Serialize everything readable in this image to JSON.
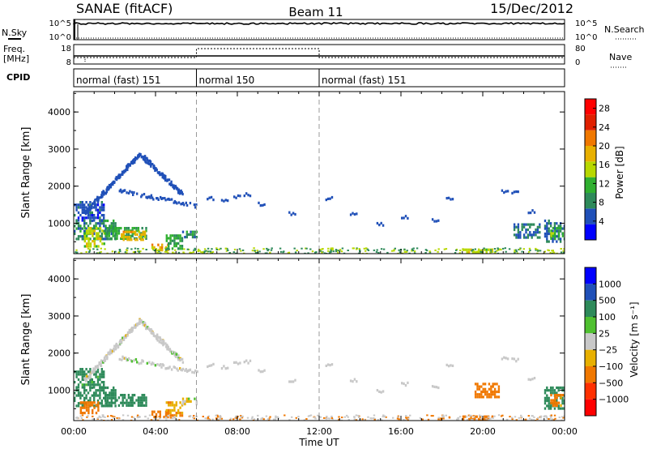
{
  "header": {
    "station": "SANAE (fitACF)",
    "beam": "Beam 11",
    "date": "15/Dec/2012"
  },
  "nsky_panel": {
    "left_label": "N.Sky",
    "left_ticks": [
      "10^5",
      "10^0"
    ],
    "right_label": "N.Search",
    "right_ticks": [
      "10^5",
      "10^0"
    ]
  },
  "freq_panel": {
    "left_label_1": "Freq.",
    "left_label_2": "[MHz]",
    "left_ticks": [
      "18",
      "8"
    ],
    "right_label": "Nave",
    "right_ticks": [
      "80",
      "0"
    ]
  },
  "cpid_panel": {
    "label": "CPID",
    "segments": [
      {
        "label": "normal (fast) 151",
        "start_h": 0,
        "end_h": 6
      },
      {
        "label": "normal 150",
        "start_h": 6,
        "end_h": 12
      },
      {
        "label": "normal (fast) 151",
        "start_h": 12,
        "end_h": 24
      }
    ]
  },
  "colors": {
    "power_scale": [
      "#0000ff",
      "#2050b8",
      "#2e8a5a",
      "#30b030",
      "#b8d800",
      "#e8b000",
      "#f07800",
      "#e02000",
      "#ff0000"
    ],
    "velocity_scale": [
      "#0000ff",
      "#2050b8",
      "#2e8a5a",
      "#4fc030",
      "#c8c8c8",
      "#e8b000",
      "#f07800",
      "#ff3000",
      "#ff0000"
    ]
  },
  "chart_data": [
    {
      "type": "heatmap",
      "name": "power",
      "ylabel": "Slant Range [km]",
      "ylim": [
        180,
        4550
      ],
      "yticks": [
        1000,
        2000,
        3000,
        4000
      ],
      "xlim": [
        0,
        24
      ],
      "colorbar": {
        "label": "Power [dB]",
        "ticks": [
          4,
          8,
          12,
          16,
          20,
          24,
          28
        ],
        "range": [
          0,
          30
        ]
      },
      "regions": [
        {
          "t0": 0.0,
          "t1": 1.5,
          "r0": 1100,
          "r1": 1600,
          "level": 6
        },
        {
          "t0": 0.0,
          "t1": 2.0,
          "r0": 600,
          "r1": 1100,
          "level": 10
        },
        {
          "t0": 0.5,
          "t1": 1.5,
          "r0": 400,
          "r1": 900,
          "level": 18
        },
        {
          "t0": 1.5,
          "t1": 3.5,
          "r0": 600,
          "r1": 900,
          "level": 12
        },
        {
          "t0": 2.3,
          "t1": 3.5,
          "r0": 550,
          "r1": 800,
          "level": 22
        },
        {
          "t0": 3.8,
          "t1": 4.6,
          "r0": 250,
          "r1": 450,
          "level": 22
        },
        {
          "t0": 4.5,
          "t1": 5.3,
          "r0": 350,
          "r1": 700,
          "level": 12
        },
        {
          "t0": 5.3,
          "t1": 6.0,
          "r0": 600,
          "r1": 800,
          "level": 10
        },
        {
          "t0": 19.0,
          "t1": 20.5,
          "r0": 200,
          "r1": 320,
          "level": 18
        },
        {
          "t0": 21.5,
          "t1": 22.8,
          "r0": 600,
          "r1": 1000,
          "level": 8
        },
        {
          "t0": 23.0,
          "t1": 24.0,
          "r0": 500,
          "r1": 1100,
          "level": 8
        },
        {
          "t0": 23.3,
          "t1": 23.9,
          "r0": 600,
          "r1": 900,
          "level": 14
        }
      ]
    },
    {
      "type": "heatmap",
      "name": "velocity",
      "ylabel": "Slant Range [km]",
      "xlabel": "Time UT",
      "ylim": [
        180,
        4550
      ],
      "yticks": [
        1000,
        2000,
        3000,
        4000
      ],
      "xlim": [
        0,
        24
      ],
      "xticks": [
        "00:00",
        "04:00",
        "08:00",
        "12:00",
        "16:00",
        "20:00",
        "00:00"
      ],
      "colorbar": {
        "label": "Velocity [m s⁻¹]",
        "ticks": [
          "1000",
          "500",
          "100",
          "25",
          "−25",
          "−100",
          "−500",
          "−1000"
        ]
      },
      "regions": [
        {
          "t0": 0.0,
          "t1": 1.5,
          "r0": 1100,
          "r1": 1600,
          "vel": 150
        },
        {
          "t0": 0.0,
          "t1": 2.0,
          "r0": 600,
          "r1": 1100,
          "vel": 200
        },
        {
          "t0": 0.3,
          "t1": 1.2,
          "r0": 400,
          "r1": 700,
          "vel": -150
        },
        {
          "t0": 1.5,
          "t1": 3.5,
          "r0": 600,
          "r1": 900,
          "vel": 200
        },
        {
          "t0": 3.8,
          "t1": 4.6,
          "r0": 250,
          "r1": 450,
          "vel": -150
        },
        {
          "t0": 4.5,
          "t1": 5.3,
          "r0": 350,
          "r1": 700,
          "vel": -80
        },
        {
          "t0": 5.3,
          "t1": 6.0,
          "r0": 600,
          "r1": 800,
          "vel": 0
        },
        {
          "t0": 19.0,
          "t1": 20.5,
          "r0": 200,
          "r1": 320,
          "vel": -300
        },
        {
          "t0": 19.6,
          "t1": 20.8,
          "r0": 800,
          "r1": 1200,
          "vel": -300
        },
        {
          "t0": 23.0,
          "t1": 24.0,
          "r0": 500,
          "r1": 1100,
          "vel": 200
        },
        {
          "t0": 23.3,
          "t1": 23.9,
          "r0": 600,
          "r1": 900,
          "vel": -150
        }
      ]
    }
  ]
}
